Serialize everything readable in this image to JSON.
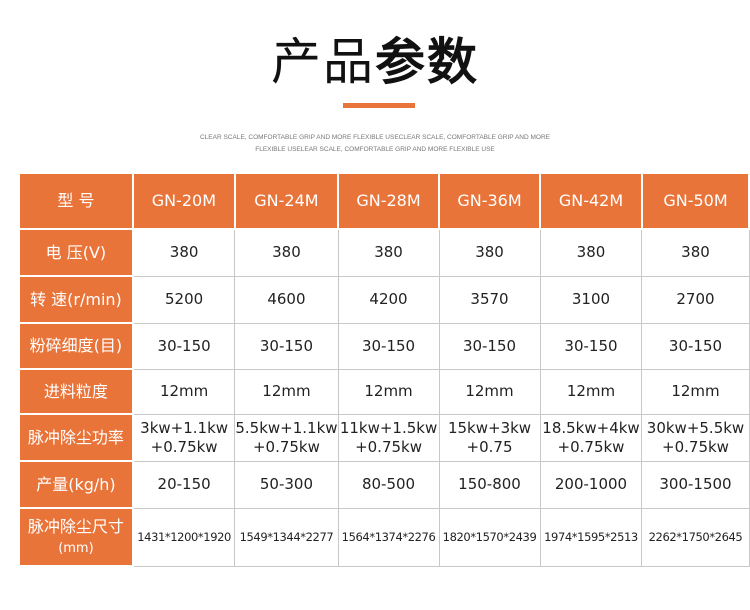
{
  "title": {
    "regular": "产品",
    "bold": "参数"
  },
  "subtitle": [
    "CLEAR SCALE, COMFORTABLE GRIP AND MORE FLEXIBLE USECLEAR SCALE, COMFORTABLE GRIP AND MORE",
    "FLEXIBLE USELEAR SCALE, COMFORTABLE GRIP AND MORE FLEXIBLE USE"
  ],
  "table": {
    "header": [
      "型 号",
      "GN-20M",
      "GN-24M",
      "GN-28M",
      "GN-36M",
      "GN-42M",
      "GN-50M"
    ],
    "rows": [
      [
        [
          "电 压(V)"
        ],
        [
          "380"
        ],
        [
          "380"
        ],
        [
          "380"
        ],
        [
          "380"
        ],
        [
          "380"
        ],
        [
          "380"
        ]
      ],
      [
        [
          "转 速(r/min)"
        ],
        [
          "5200"
        ],
        [
          "4600"
        ],
        [
          "4200"
        ],
        [
          "3570"
        ],
        [
          "3100"
        ],
        [
          "2700"
        ]
      ],
      [
        [
          "粉碎细度(目)"
        ],
        [
          "30-150"
        ],
        [
          "30-150"
        ],
        [
          "30-150"
        ],
        [
          "30-150"
        ],
        [
          "30-150"
        ],
        [
          "30-150"
        ]
      ],
      [
        [
          "进料粒度"
        ],
        [
          "12mm"
        ],
        [
          "12mm"
        ],
        [
          "12mm"
        ],
        [
          "12mm"
        ],
        [
          "12mm"
        ],
        [
          "12mm"
        ]
      ],
      [
        [
          "脉冲除尘功率"
        ],
        [
          "3kw+1.1kw",
          "+0.75kw"
        ],
        [
          "5.5kw+1.1kw",
          "+0.75kw"
        ],
        [
          "11kw+1.5kw",
          "+0.75kw"
        ],
        [
          "15kw+3kw",
          "+0.75"
        ],
        [
          "18.5kw+4kw",
          "+0.75kw"
        ],
        [
          "30kw+5.5kw",
          "+0.75kw"
        ]
      ],
      [
        [
          "产量(kg/h)"
        ],
        [
          "20-150"
        ],
        [
          "50-300"
        ],
        [
          "80-500"
        ],
        [
          "150-800"
        ],
        [
          "200-1000"
        ],
        [
          "300-1500"
        ]
      ],
      [
        [
          "脉冲除尘尺寸",
          "(mm)"
        ],
        [
          "1431*1200*1920"
        ],
        [
          "1549*1344*2277"
        ],
        [
          "1564*1374*2276"
        ],
        [
          "1820*1570*2439"
        ],
        [
          "1974*1595*2513"
        ],
        [
          "2262*1750*2645"
        ]
      ]
    ]
  }
}
